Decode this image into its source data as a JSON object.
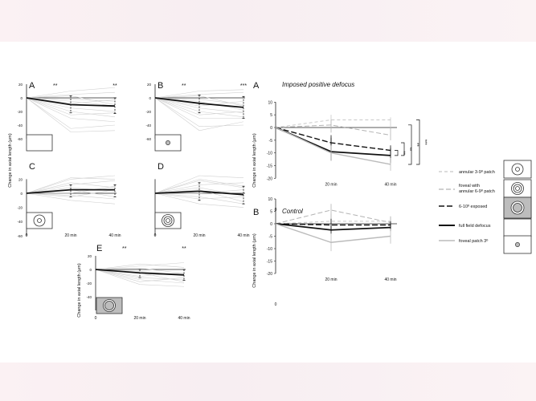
{
  "left_panels": [
    {
      "label": "A",
      "sig": [
        "**",
        "**"
      ],
      "mean": [
        0,
        -10,
        -12
      ],
      "lower": [
        0,
        -22,
        -23
      ],
      "upper": [
        0,
        3,
        0
      ],
      "icon": "empty",
      "bg": "none",
      "indiv": [
        [
          0,
          5,
          8
        ],
        [
          0,
          -2,
          -5
        ],
        [
          0,
          -20,
          -28
        ],
        [
          0,
          -45,
          -40
        ],
        [
          0,
          -50,
          -48
        ],
        [
          0,
          10,
          15
        ],
        [
          0,
          -8,
          -3
        ],
        [
          0,
          -30,
          -35
        ],
        [
          0,
          3,
          -10
        ],
        [
          0,
          -15,
          -20
        ],
        [
          0,
          -5,
          -12
        ],
        [
          0,
          -25,
          -22
        ]
      ]
    },
    {
      "label": "B",
      "sig": [
        "**",
        "***"
      ],
      "mean": [
        0,
        -8,
        -14
      ],
      "lower": [
        0,
        -22,
        -30
      ],
      "upper": [
        0,
        4,
        2
      ],
      "icon": "dot",
      "bg": "none",
      "indiv": [
        [
          0,
          5,
          8
        ],
        [
          0,
          -2,
          -10
        ],
        [
          0,
          -20,
          -28
        ],
        [
          0,
          -42,
          -40
        ],
        [
          0,
          -48,
          -35
        ],
        [
          0,
          10,
          12
        ],
        [
          0,
          -12,
          -5
        ],
        [
          0,
          -30,
          -30
        ],
        [
          0,
          3,
          -12
        ],
        [
          0,
          -15,
          -22
        ],
        [
          0,
          -5,
          -18
        ],
        [
          0,
          -25,
          -20
        ]
      ]
    },
    {
      "label": "C",
      "sig": [
        "",
        ""
      ],
      "mean": [
        0,
        5,
        5
      ],
      "lower": [
        0,
        -5,
        -5
      ],
      "upper": [
        0,
        12,
        12
      ],
      "icon": "ring-dot",
      "bg": "none",
      "indiv": [
        [
          0,
          20,
          25
        ],
        [
          0,
          -10,
          -15
        ],
        [
          0,
          12,
          18
        ],
        [
          0,
          -5,
          5
        ],
        [
          0,
          15,
          8
        ],
        [
          0,
          5,
          -5
        ],
        [
          0,
          22,
          20
        ],
        [
          0,
          0,
          10
        ],
        [
          0,
          8,
          3
        ],
        [
          0,
          -3,
          -8
        ]
      ]
    },
    {
      "label": "D",
      "sig": [
        "",
        ""
      ],
      "mean": [
        0,
        3,
        -2
      ],
      "lower": [
        0,
        -10,
        -15
      ],
      "upper": [
        0,
        15,
        10
      ],
      "icon": "rings",
      "bg": "none",
      "indiv": [
        [
          0,
          25,
          22
        ],
        [
          0,
          -15,
          -20
        ],
        [
          0,
          12,
          15
        ],
        [
          0,
          -8,
          -5
        ],
        [
          0,
          20,
          10
        ],
        [
          0,
          5,
          -12
        ],
        [
          0,
          18,
          8
        ],
        [
          0,
          0,
          5
        ],
        [
          0,
          8,
          -3
        ],
        [
          0,
          -5,
          -15
        ]
      ]
    },
    {
      "label": "E",
      "sig": [
        "**",
        "**"
      ],
      "mean": [
        0,
        -5,
        -8
      ],
      "lower": [
        0,
        -12,
        -16
      ],
      "upper": [
        0,
        0,
        0
      ],
      "icon": "circle",
      "bg": "gray",
      "indiv": [
        [
          0,
          5,
          10
        ],
        [
          0,
          -3,
          -8
        ],
        [
          0,
          -15,
          -20
        ],
        [
          0,
          -22,
          -25
        ],
        [
          0,
          -10,
          -5
        ],
        [
          0,
          8,
          3
        ],
        [
          0,
          -12,
          -15
        ],
        [
          0,
          -5,
          -18
        ],
        [
          0,
          2,
          -6
        ],
        [
          0,
          -18,
          -12
        ]
      ]
    }
  ],
  "left_axis": {
    "ylabel": "Change in axial length (μm)",
    "ticks": [
      "20",
      "0",
      "-20",
      "-40",
      "-60"
    ],
    "xticks": [
      "0",
      "20 min",
      "40 min"
    ]
  },
  "right_axis": {
    "ylabel": "Change in axial length (μm)",
    "ticks": [
      "10",
      "5",
      "0",
      "-5",
      "-10",
      "-15",
      "-20"
    ],
    "xticks": [
      "0",
      "20 min",
      "40 min"
    ]
  },
  "panel_a": {
    "label": "A",
    "title": "Imposed positive defocus",
    "brackets": [
      "**",
      "**",
      "**",
      "***"
    ]
  },
  "panel_b": {
    "label": "B",
    "title": "Control"
  },
  "legend": [
    {
      "label": "annular 3-9º patch",
      "style": "dash-light",
      "icon": "ring-dot"
    },
    {
      "label": "foveal with annular 6-9º patch",
      "style": "dash-light",
      "icon": "rings"
    },
    {
      "label": "6-10º exposed",
      "style": "dash-dark",
      "icon": "circle-gray"
    },
    {
      "label": "full field defocus",
      "style": "solid-dark",
      "icon": "empty"
    },
    {
      "label": "foveal patch 3º",
      "style": "solid-light",
      "icon": "dot"
    }
  ],
  "chart_data": [
    {
      "type": "line",
      "panel": "A (imposed positive defocus)",
      "x": [
        "0",
        "20 min",
        "40 min"
      ],
      "ylabel": "Change in axial length (μm)",
      "ylim": [
        -20,
        10
      ],
      "series": [
        {
          "name": "annular 3-9º patch",
          "values": [
            0,
            3,
            3
          ],
          "err_low": [
            0,
            0,
            0
          ],
          "err_high": [
            0,
            5,
            4
          ]
        },
        {
          "name": "foveal with annular 6-9º patch",
          "values": [
            0,
            1,
            -3
          ],
          "err_low": [
            0,
            -2,
            -5
          ],
          "err_high": [
            0,
            3,
            0
          ]
        },
        {
          "name": "6-10º exposed",
          "values": [
            0,
            -6,
            -9
          ],
          "err_low": [
            0,
            -9,
            -11
          ],
          "err_high": [
            0,
            -3,
            -7
          ]
        },
        {
          "name": "full field defocus",
          "values": [
            0,
            -9.5,
            -11
          ],
          "err_low": [
            0,
            -13,
            -14
          ],
          "err_high": [
            0,
            -4,
            -8
          ]
        },
        {
          "name": "foveal patch 3º",
          "values": [
            0,
            -10,
            -14.5
          ],
          "err_low": [
            0,
            -13,
            -17
          ],
          "err_high": [
            0,
            -7,
            -12
          ]
        }
      ]
    },
    {
      "type": "line",
      "panel": "B (control)",
      "x": [
        "0",
        "20 min",
        "40 min"
      ],
      "ylabel": "Change in axial length (μm)",
      "ylim": [
        -20,
        10
      ],
      "series": [
        {
          "name": "annular 3-9º patch",
          "values": [
            0,
            1,
            1
          ],
          "err_low": [
            0,
            -2,
            -1
          ],
          "err_high": [
            0,
            4,
            3
          ]
        },
        {
          "name": "foveal with annular 6-9º patch",
          "values": [
            0,
            5.5,
            0.5
          ],
          "err_low": [
            0,
            2,
            -2
          ],
          "err_high": [
            0,
            8,
            3
          ]
        },
        {
          "name": "6-10º exposed",
          "values": [
            0,
            -0.5,
            -0.5
          ],
          "err_low": [
            0,
            -3,
            -2
          ],
          "err_high": [
            0,
            2,
            1
          ]
        },
        {
          "name": "full field defocus",
          "values": [
            0,
            -2.5,
            -1.5
          ],
          "err_low": [
            0,
            -4,
            -3
          ],
          "err_high": [
            0,
            -1,
            0
          ]
        },
        {
          "name": "foveal patch 3º",
          "values": [
            0,
            -7.5,
            -5
          ],
          "err_low": [
            0,
            -11,
            -8
          ],
          "err_high": [
            0,
            -4,
            -2
          ]
        }
      ]
    }
  ]
}
